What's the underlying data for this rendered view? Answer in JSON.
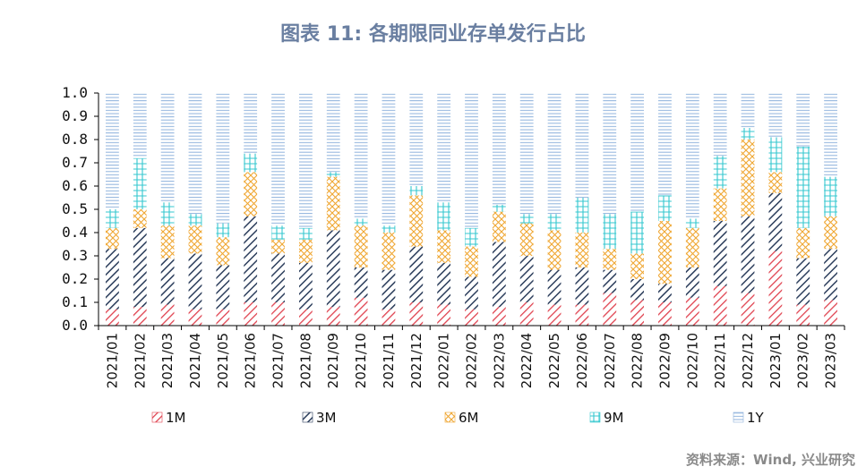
{
  "chart_data": {
    "type": "bar",
    "stacked": true,
    "title": "图表 11: 各期限同业存单发行占比",
    "xlabel": "",
    "ylabel": "",
    "ylim": [
      0,
      1.0
    ],
    "yticks": [
      "0.0",
      "0.1",
      "0.2",
      "0.3",
      "0.4",
      "0.5",
      "0.6",
      "0.7",
      "0.8",
      "0.9",
      "1.0"
    ],
    "legend_position": "bottom",
    "categories": [
      "2021/01",
      "2021/02",
      "2021/03",
      "2021/04",
      "2021/05",
      "2021/06",
      "2021/07",
      "2021/08",
      "2021/09",
      "2021/10",
      "2021/11",
      "2021/12",
      "2022/01",
      "2022/02",
      "2022/03",
      "2022/04",
      "2022/05",
      "2022/06",
      "2022/07",
      "2022/08",
      "2022/09",
      "2022/10",
      "2022/11",
      "2022/12",
      "2023/01",
      "2023/02",
      "2023/03"
    ],
    "series": [
      {
        "name": "1M",
        "color": "#e0424f",
        "pattern": "diag-up",
        "values": [
          0.07,
          0.08,
          0.09,
          0.07,
          0.07,
          0.1,
          0.1,
          0.07,
          0.08,
          0.12,
          0.07,
          0.1,
          0.09,
          0.07,
          0.08,
          0.1,
          0.09,
          0.09,
          0.14,
          0.11,
          0.1,
          0.12,
          0.17,
          0.14,
          0.32,
          0.09,
          0.11
        ]
      },
      {
        "name": "3M",
        "color": "#2c3e5c",
        "pattern": "diag-up-bold",
        "values": [
          0.26,
          0.34,
          0.2,
          0.24,
          0.19,
          0.37,
          0.21,
          0.2,
          0.33,
          0.13,
          0.17,
          0.24,
          0.18,
          0.14,
          0.28,
          0.2,
          0.15,
          0.16,
          0.1,
          0.09,
          0.08,
          0.13,
          0.28,
          0.33,
          0.25,
          0.2,
          0.22
        ]
      },
      {
        "name": "6M",
        "color": "#f0a732",
        "pattern": "crosshatch",
        "values": [
          0.09,
          0.08,
          0.14,
          0.12,
          0.12,
          0.19,
          0.06,
          0.1,
          0.23,
          0.18,
          0.16,
          0.22,
          0.14,
          0.13,
          0.13,
          0.14,
          0.17,
          0.15,
          0.09,
          0.11,
          0.27,
          0.17,
          0.14,
          0.33,
          0.09,
          0.13,
          0.14
        ]
      },
      {
        "name": "9M",
        "color": "#33c7cf",
        "pattern": "grid",
        "values": [
          0.08,
          0.22,
          0.1,
          0.05,
          0.06,
          0.08,
          0.06,
          0.05,
          0.02,
          0.03,
          0.03,
          0.04,
          0.12,
          0.08,
          0.03,
          0.04,
          0.07,
          0.15,
          0.15,
          0.18,
          0.11,
          0.04,
          0.14,
          0.05,
          0.15,
          0.35,
          0.17
        ]
      },
      {
        "name": "1Y",
        "color": "#8fb3dd",
        "pattern": "horizontal",
        "values": [
          0.5,
          0.28,
          0.47,
          0.52,
          0.56,
          0.26,
          0.57,
          0.58,
          0.34,
          0.54,
          0.57,
          0.4,
          0.47,
          0.58,
          0.48,
          0.52,
          0.52,
          0.45,
          0.52,
          0.51,
          0.44,
          0.54,
          0.27,
          0.15,
          0.19,
          0.23,
          0.36
        ]
      }
    ]
  },
  "source": "资料来源：Wind, 兴业研究"
}
